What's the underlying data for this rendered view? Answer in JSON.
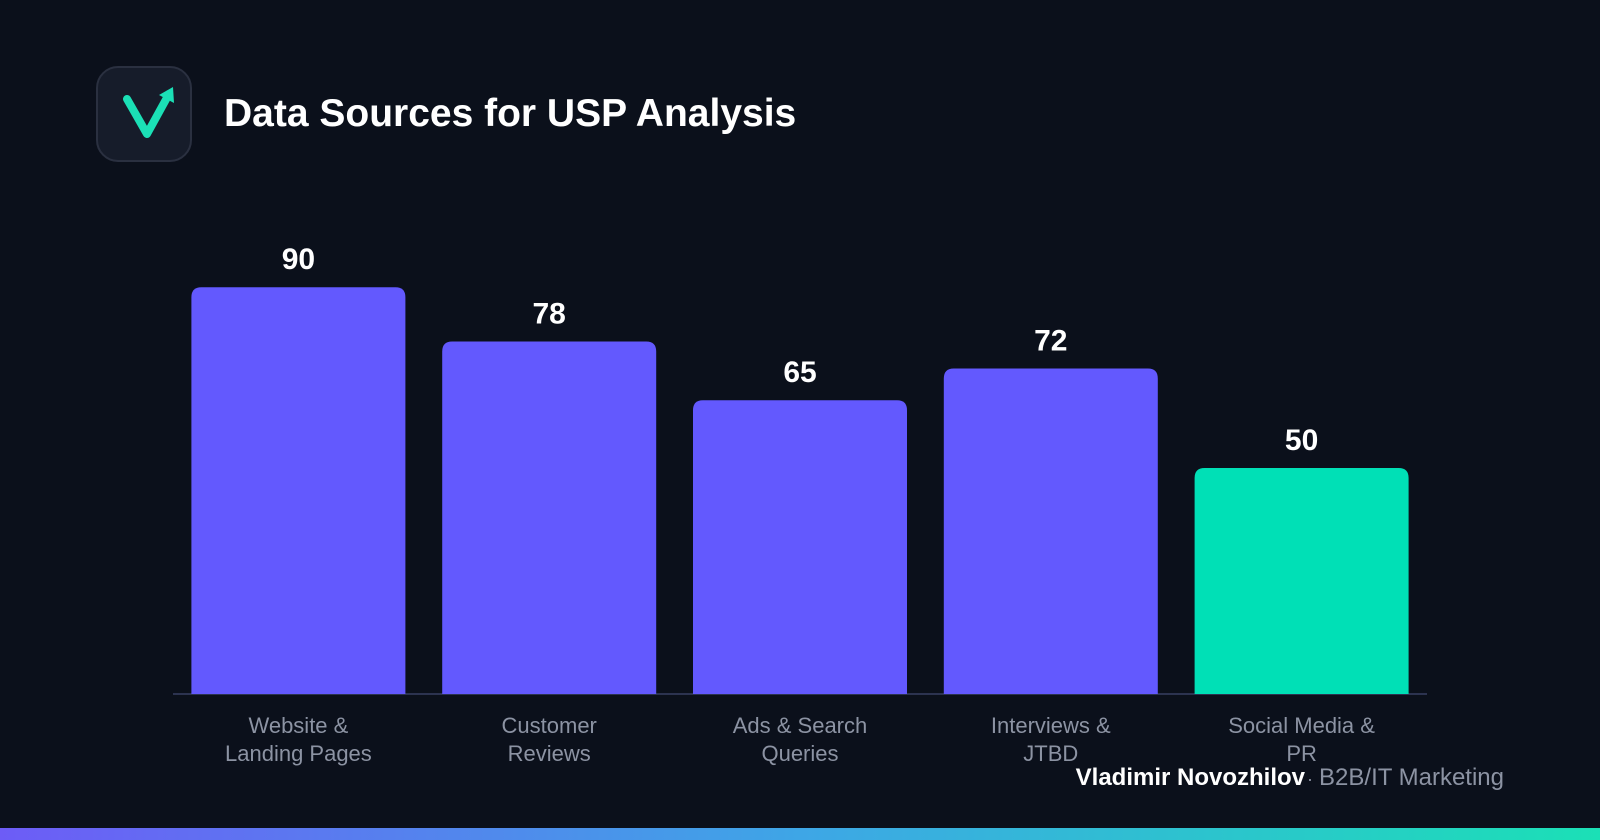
{
  "header": {
    "title": "Data Sources for USP Analysis",
    "logo_icon": "v-checkmark-arrow-icon"
  },
  "chart_data": {
    "type": "bar",
    "title": "Data Sources for USP Analysis",
    "xlabel": "",
    "ylabel": "",
    "categories": [
      [
        "Website &",
        "Landing Pages"
      ],
      [
        "Customer",
        "Reviews"
      ],
      [
        "Ads & Search",
        "Queries"
      ],
      [
        "Interviews &",
        "JTBD"
      ],
      [
        "Social Media &",
        "PR"
      ]
    ],
    "values": [
      90,
      78,
      65,
      72,
      50
    ],
    "ylim": [
      0,
      100
    ],
    "grid": false,
    "legend": "none",
    "colors": [
      "#6359fe",
      "#6359fe",
      "#6359fe",
      "#6359fe",
      "#00e0b6"
    ]
  },
  "footer": {
    "author": "Vladimir Novozhilov",
    "separator": "·",
    "role": "B2B/IT Marketing"
  },
  "theme": {
    "background": "#0b101b",
    "primary_bar": "#6359fe",
    "accent_bar": "#00e0b6",
    "baseline": "#2c3350",
    "label_muted": "#8c93a3"
  }
}
